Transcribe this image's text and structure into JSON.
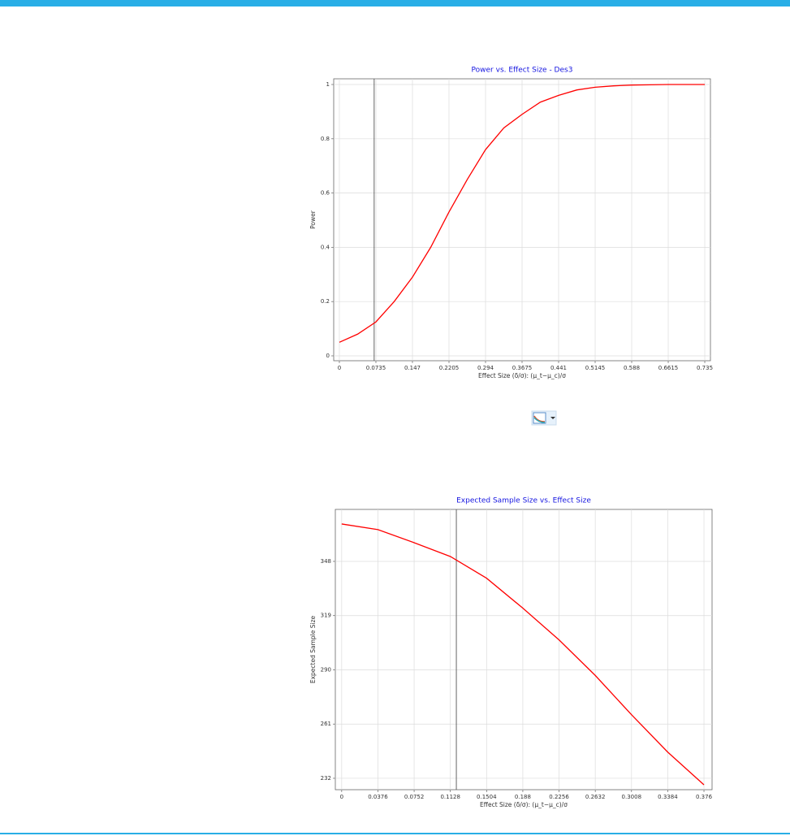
{
  "chart_data": [
    {
      "type": "line",
      "title": "Power vs. Effect Size - Des3",
      "x_label": "Effect Size (δ/σ): (μ_t−μ_c)/σ",
      "y_label": "Power",
      "series": [
        {
          "name": null,
          "color": "#ff0000",
          "x": [
            0,
            0.03675,
            0.0735,
            0.11025,
            0.147,
            0.18375,
            0.2205,
            0.25725,
            0.294,
            0.33075,
            0.3675,
            0.40425,
            0.441,
            0.47775,
            0.5145,
            0.55125,
            0.588,
            0.62475,
            0.6615,
            0.69825,
            0.735
          ],
          "values": [
            0.05,
            0.08,
            0.125,
            0.2,
            0.29,
            0.4,
            0.53,
            0.65,
            0.76,
            0.84,
            0.89,
            0.935,
            0.96,
            0.98,
            0.99,
            0.995,
            0.998,
            0.999,
            1,
            1,
            1
          ]
        }
      ],
      "reference_x": 0.07,
      "xlim": [
        -0.0114,
        0.7464
      ],
      "ylim": [
        -0.018,
        1.021
      ],
      "xticks": [
        0,
        0.0735,
        0.147,
        0.2205,
        0.294,
        0.3675,
        0.441,
        0.5145,
        0.588,
        0.6615,
        0.735
      ],
      "yticks": [
        0,
        0.2,
        0.4,
        0.6,
        0.8,
        1
      ],
      "grid": true
    },
    {
      "type": "line",
      "title": "Expected Sample Size vs. Effect Size",
      "x_label": "Effect Size (δ/σ): (μ_t−μ_c)/σ",
      "y_label": "Expected Sample Size",
      "series": [
        {
          "name": null,
          "color": "#ff0000",
          "x": [
            0,
            0.0376,
            0.0752,
            0.1128,
            0.1504,
            0.188,
            0.2256,
            0.2632,
            0.3008,
            0.3384,
            0.376
          ],
          "values": [
            368,
            365,
            358,
            350.6,
            339,
            323,
            306,
            287,
            266,
            246,
            228.5
          ]
        }
      ],
      "reference_x": 0.119,
      "xlim": [
        -0.0066,
        0.3844
      ],
      "ylim": [
        225.9,
        375.8
      ],
      "xticks": [
        0,
        0.0376,
        0.0752,
        0.1128,
        0.1504,
        0.188,
        0.2256,
        0.2632,
        0.3008,
        0.3384,
        0.376
      ],
      "yticks": [
        232,
        261,
        290,
        319,
        348
      ],
      "grid": true
    }
  ]
}
